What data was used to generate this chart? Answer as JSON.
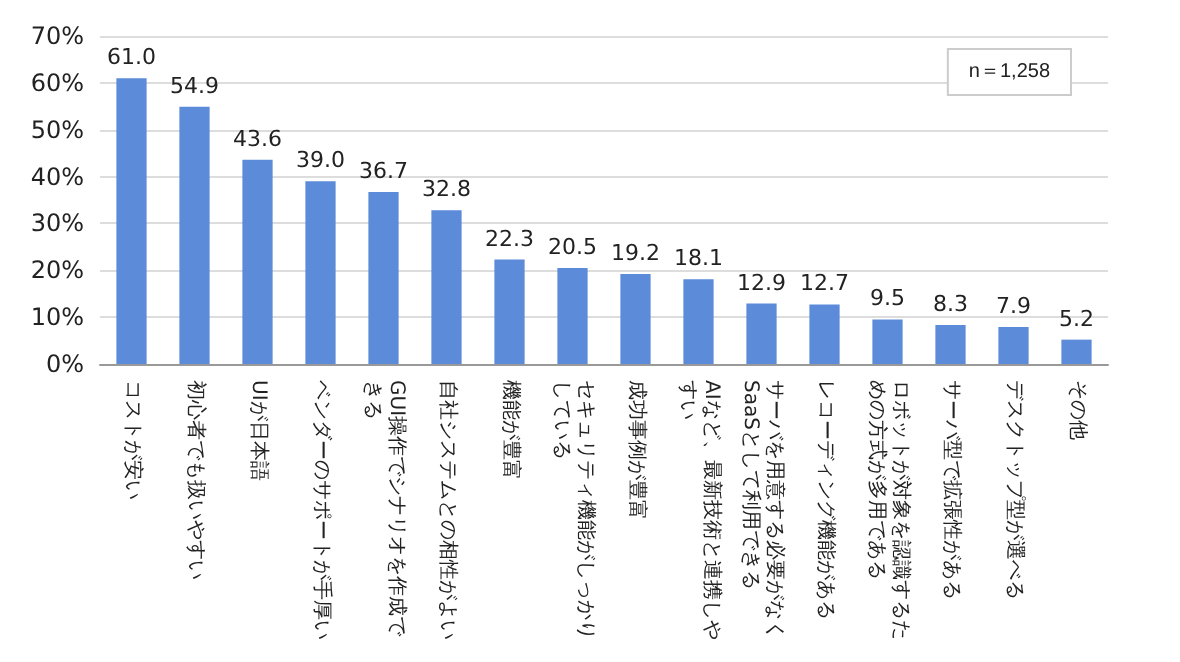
{
  "chart_data": {
    "type": "bar",
    "categories": [
      "コストが安い",
      "初心者でも扱いやすい",
      "UIが日本語",
      "ベンダーのサポートが手厚い",
      "GUI操作でシナリオを作成できる",
      "自社システムとの相性がよい",
      "機能が豊富",
      "セキュリティ機能がしっかりしている",
      "成功事例が豊富",
      "AIなど、最新技術と連携しやすい",
      "サーバを用意する必要がなくSaaSとして利用できる",
      "レコーディング機能がある",
      "ロボットが対象を認識するための方式が多用である",
      "サーバ型で拡張性がある",
      "デスクトップ型が選べる",
      "その他"
    ],
    "values": [
      61.0,
      54.9,
      43.6,
      39.0,
      36.7,
      32.8,
      22.3,
      20.5,
      19.2,
      18.1,
      12.9,
      12.7,
      9.5,
      8.3,
      7.9,
      5.2
    ],
    "value_labels": [
      "61.0",
      "54.9",
      "43.6",
      "39.0",
      "36.7",
      "32.8",
      "22.3",
      "20.5",
      "19.2",
      "18.1",
      "12.9",
      "12.7",
      "9.5",
      "8.3",
      "7.9",
      "5.2"
    ],
    "color": "#5b8bd9",
    "ylim": [
      0,
      70
    ],
    "yticks": [
      {
        "value": 0,
        "label": "0%"
      },
      {
        "value": 10,
        "label": "10%"
      },
      {
        "value": 20,
        "label": "20%"
      },
      {
        "value": 30,
        "label": "30%"
      },
      {
        "value": 40,
        "label": "40%"
      },
      {
        "value": 50,
        "label": "50%"
      },
      {
        "value": 60,
        "label": "60%"
      },
      {
        "value": 70,
        "label": "70%"
      }
    ],
    "grid": true,
    "annotations": [
      "n＝1,258"
    ]
  }
}
